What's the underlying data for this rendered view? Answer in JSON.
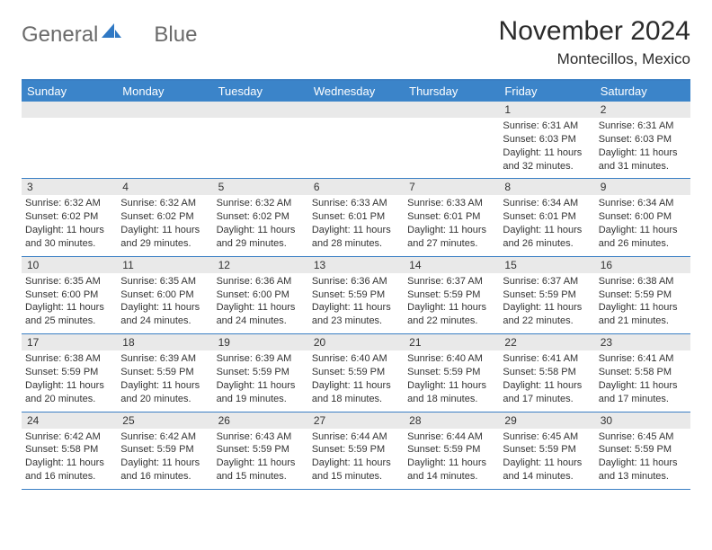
{
  "colors": {
    "header_blue": "#3b84c9",
    "rule_blue": "#3a7fc4",
    "daynum_bg": "#e9e9e9",
    "text": "#333333",
    "logo_gray": "#6b6b6b",
    "logo_blue": "#2f78c4",
    "background": "#ffffff"
  },
  "logo": {
    "part1": "General",
    "part2": "Blue"
  },
  "title": "November 2024",
  "location": "Montecillos, Mexico",
  "day_names": [
    "Sunday",
    "Monday",
    "Tuesday",
    "Wednesday",
    "Thursday",
    "Friday",
    "Saturday"
  ],
  "weeks": [
    [
      {
        "empty": true
      },
      {
        "empty": true
      },
      {
        "empty": true
      },
      {
        "empty": true
      },
      {
        "empty": true
      },
      {
        "day": "1",
        "sunrise": "Sunrise: 6:31 AM",
        "sunset": "Sunset: 6:03 PM",
        "daylight1": "Daylight: 11 hours",
        "daylight2": "and 32 minutes."
      },
      {
        "day": "2",
        "sunrise": "Sunrise: 6:31 AM",
        "sunset": "Sunset: 6:03 PM",
        "daylight1": "Daylight: 11 hours",
        "daylight2": "and 31 minutes."
      }
    ],
    [
      {
        "day": "3",
        "sunrise": "Sunrise: 6:32 AM",
        "sunset": "Sunset: 6:02 PM",
        "daylight1": "Daylight: 11 hours",
        "daylight2": "and 30 minutes."
      },
      {
        "day": "4",
        "sunrise": "Sunrise: 6:32 AM",
        "sunset": "Sunset: 6:02 PM",
        "daylight1": "Daylight: 11 hours",
        "daylight2": "and 29 minutes."
      },
      {
        "day": "5",
        "sunrise": "Sunrise: 6:32 AM",
        "sunset": "Sunset: 6:02 PM",
        "daylight1": "Daylight: 11 hours",
        "daylight2": "and 29 minutes."
      },
      {
        "day": "6",
        "sunrise": "Sunrise: 6:33 AM",
        "sunset": "Sunset: 6:01 PM",
        "daylight1": "Daylight: 11 hours",
        "daylight2": "and 28 minutes."
      },
      {
        "day": "7",
        "sunrise": "Sunrise: 6:33 AM",
        "sunset": "Sunset: 6:01 PM",
        "daylight1": "Daylight: 11 hours",
        "daylight2": "and 27 minutes."
      },
      {
        "day": "8",
        "sunrise": "Sunrise: 6:34 AM",
        "sunset": "Sunset: 6:01 PM",
        "daylight1": "Daylight: 11 hours",
        "daylight2": "and 26 minutes."
      },
      {
        "day": "9",
        "sunrise": "Sunrise: 6:34 AM",
        "sunset": "Sunset: 6:00 PM",
        "daylight1": "Daylight: 11 hours",
        "daylight2": "and 26 minutes."
      }
    ],
    [
      {
        "day": "10",
        "sunrise": "Sunrise: 6:35 AM",
        "sunset": "Sunset: 6:00 PM",
        "daylight1": "Daylight: 11 hours",
        "daylight2": "and 25 minutes."
      },
      {
        "day": "11",
        "sunrise": "Sunrise: 6:35 AM",
        "sunset": "Sunset: 6:00 PM",
        "daylight1": "Daylight: 11 hours",
        "daylight2": "and 24 minutes."
      },
      {
        "day": "12",
        "sunrise": "Sunrise: 6:36 AM",
        "sunset": "Sunset: 6:00 PM",
        "daylight1": "Daylight: 11 hours",
        "daylight2": "and 24 minutes."
      },
      {
        "day": "13",
        "sunrise": "Sunrise: 6:36 AM",
        "sunset": "Sunset: 5:59 PM",
        "daylight1": "Daylight: 11 hours",
        "daylight2": "and 23 minutes."
      },
      {
        "day": "14",
        "sunrise": "Sunrise: 6:37 AM",
        "sunset": "Sunset: 5:59 PM",
        "daylight1": "Daylight: 11 hours",
        "daylight2": "and 22 minutes."
      },
      {
        "day": "15",
        "sunrise": "Sunrise: 6:37 AM",
        "sunset": "Sunset: 5:59 PM",
        "daylight1": "Daylight: 11 hours",
        "daylight2": "and 22 minutes."
      },
      {
        "day": "16",
        "sunrise": "Sunrise: 6:38 AM",
        "sunset": "Sunset: 5:59 PM",
        "daylight1": "Daylight: 11 hours",
        "daylight2": "and 21 minutes."
      }
    ],
    [
      {
        "day": "17",
        "sunrise": "Sunrise: 6:38 AM",
        "sunset": "Sunset: 5:59 PM",
        "daylight1": "Daylight: 11 hours",
        "daylight2": "and 20 minutes."
      },
      {
        "day": "18",
        "sunrise": "Sunrise: 6:39 AM",
        "sunset": "Sunset: 5:59 PM",
        "daylight1": "Daylight: 11 hours",
        "daylight2": "and 20 minutes."
      },
      {
        "day": "19",
        "sunrise": "Sunrise: 6:39 AM",
        "sunset": "Sunset: 5:59 PM",
        "daylight1": "Daylight: 11 hours",
        "daylight2": "and 19 minutes."
      },
      {
        "day": "20",
        "sunrise": "Sunrise: 6:40 AM",
        "sunset": "Sunset: 5:59 PM",
        "daylight1": "Daylight: 11 hours",
        "daylight2": "and 18 minutes."
      },
      {
        "day": "21",
        "sunrise": "Sunrise: 6:40 AM",
        "sunset": "Sunset: 5:59 PM",
        "daylight1": "Daylight: 11 hours",
        "daylight2": "and 18 minutes."
      },
      {
        "day": "22",
        "sunrise": "Sunrise: 6:41 AM",
        "sunset": "Sunset: 5:58 PM",
        "daylight1": "Daylight: 11 hours",
        "daylight2": "and 17 minutes."
      },
      {
        "day": "23",
        "sunrise": "Sunrise: 6:41 AM",
        "sunset": "Sunset: 5:58 PM",
        "daylight1": "Daylight: 11 hours",
        "daylight2": "and 17 minutes."
      }
    ],
    [
      {
        "day": "24",
        "sunrise": "Sunrise: 6:42 AM",
        "sunset": "Sunset: 5:58 PM",
        "daylight1": "Daylight: 11 hours",
        "daylight2": "and 16 minutes."
      },
      {
        "day": "25",
        "sunrise": "Sunrise: 6:42 AM",
        "sunset": "Sunset: 5:59 PM",
        "daylight1": "Daylight: 11 hours",
        "daylight2": "and 16 minutes."
      },
      {
        "day": "26",
        "sunrise": "Sunrise: 6:43 AM",
        "sunset": "Sunset: 5:59 PM",
        "daylight1": "Daylight: 11 hours",
        "daylight2": "and 15 minutes."
      },
      {
        "day": "27",
        "sunrise": "Sunrise: 6:44 AM",
        "sunset": "Sunset: 5:59 PM",
        "daylight1": "Daylight: 11 hours",
        "daylight2": "and 15 minutes."
      },
      {
        "day": "28",
        "sunrise": "Sunrise: 6:44 AM",
        "sunset": "Sunset: 5:59 PM",
        "daylight1": "Daylight: 11 hours",
        "daylight2": "and 14 minutes."
      },
      {
        "day": "29",
        "sunrise": "Sunrise: 6:45 AM",
        "sunset": "Sunset: 5:59 PM",
        "daylight1": "Daylight: 11 hours",
        "daylight2": "and 14 minutes."
      },
      {
        "day": "30",
        "sunrise": "Sunrise: 6:45 AM",
        "sunset": "Sunset: 5:59 PM",
        "daylight1": "Daylight: 11 hours",
        "daylight2": "and 13 minutes."
      }
    ]
  ]
}
